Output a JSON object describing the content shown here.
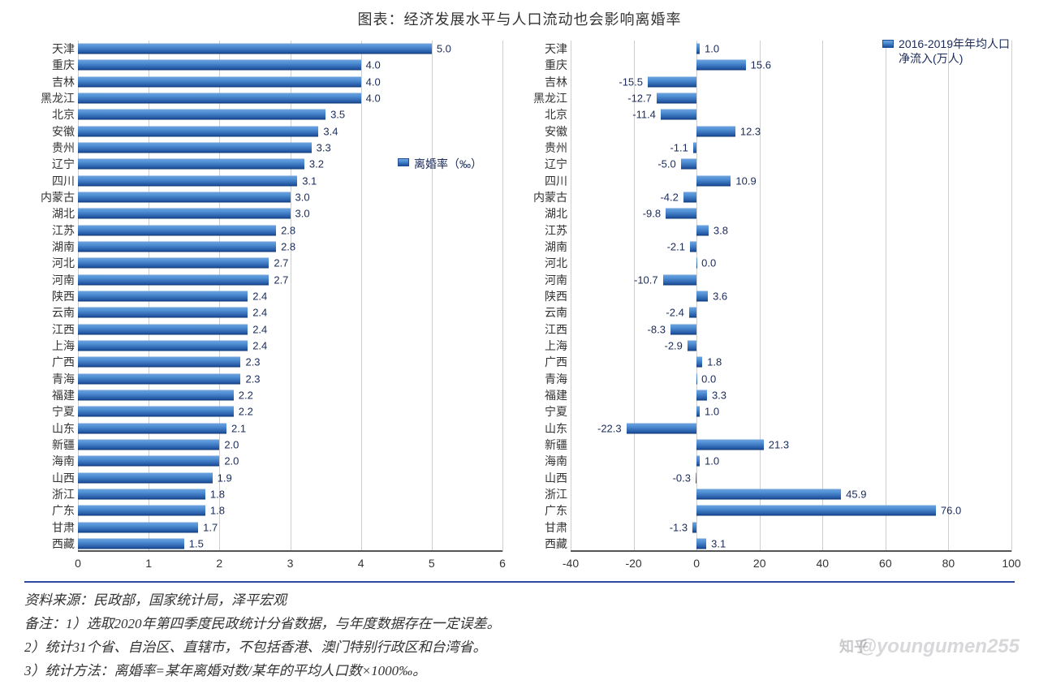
{
  "title": "图表：经济发展水平与人口流动也会影响离婚率",
  "provinces": [
    "天津",
    "重庆",
    "吉林",
    "黑龙江",
    "北京",
    "安徽",
    "贵州",
    "辽宁",
    "四川",
    "内蒙古",
    "湖北",
    "江苏",
    "湖南",
    "河北",
    "河南",
    "陕西",
    "云南",
    "江西",
    "上海",
    "广西",
    "青海",
    "福建",
    "宁夏",
    "山东",
    "新疆",
    "海南",
    "山西",
    "浙江",
    "广东",
    "甘肃",
    "西藏"
  ],
  "chart_left": {
    "type": "bar-horizontal",
    "legend": "离婚率（‰）",
    "legend_color": "#1d4f9c",
    "bar_gradient": [
      "#6ea3de",
      "#4f8fd4",
      "#1d4f9c"
    ],
    "xmin": 0,
    "xmax": 6,
    "xtick_step": 1,
    "grid_color": "#cfcfcf",
    "label_fontsize": 14,
    "value_fontsize": 13,
    "values": [
      5.0,
      4.0,
      4.0,
      4.0,
      3.5,
      3.4,
      3.3,
      3.2,
      3.1,
      3.0,
      3.0,
      2.8,
      2.8,
      2.7,
      2.7,
      2.4,
      2.4,
      2.4,
      2.4,
      2.3,
      2.3,
      2.2,
      2.2,
      2.1,
      2.0,
      2.0,
      1.9,
      1.8,
      1.8,
      1.7,
      1.5
    ]
  },
  "chart_right": {
    "type": "bar-horizontal-diverging",
    "legend_line1": "2016-2019年年均人口",
    "legend_line2": "净流入(万人)",
    "legend_color": "#1d4f9c",
    "bar_gradient": [
      "#6ea3de",
      "#4f8fd4",
      "#1d4f9c"
    ],
    "xmin": -40,
    "xmax": 100,
    "xtick_step": 20,
    "grid_color": "#cfcfcf",
    "label_fontsize": 14,
    "value_fontsize": 13,
    "values": [
      1.0,
      15.6,
      -15.5,
      -12.7,
      -11.4,
      12.3,
      -1.1,
      -5.0,
      10.9,
      -4.2,
      -9.8,
      3.8,
      -2.1,
      0.0,
      -10.7,
      3.6,
      -2.4,
      -8.3,
      -2.9,
      1.8,
      0.0,
      3.3,
      1.0,
      -22.3,
      21.3,
      1.0,
      -0.3,
      45.9,
      76.0,
      -1.3,
      3.1
    ]
  },
  "notes": {
    "source": "资料来源：民政部，国家统计局，泽平宏观",
    "n1": "备注：1）选取2020年第四季度民政统计分省数据，与年度数据存在一定误差。",
    "n2": "2）统计31个省、自治区、直辖市，不包括香港、澳门特别行政区和台湾省。",
    "n3": "3）统计方法：离婚率=某年离婚对数/某年的平均人口数×1000‰。"
  },
  "watermark": "@youngumen255",
  "zhihu_label": "知乎",
  "colors": {
    "text": "#333333",
    "value_text": "#1a2b5a",
    "axis": "#555555",
    "divider": "#2b4aa0",
    "background": "#ffffff"
  }
}
